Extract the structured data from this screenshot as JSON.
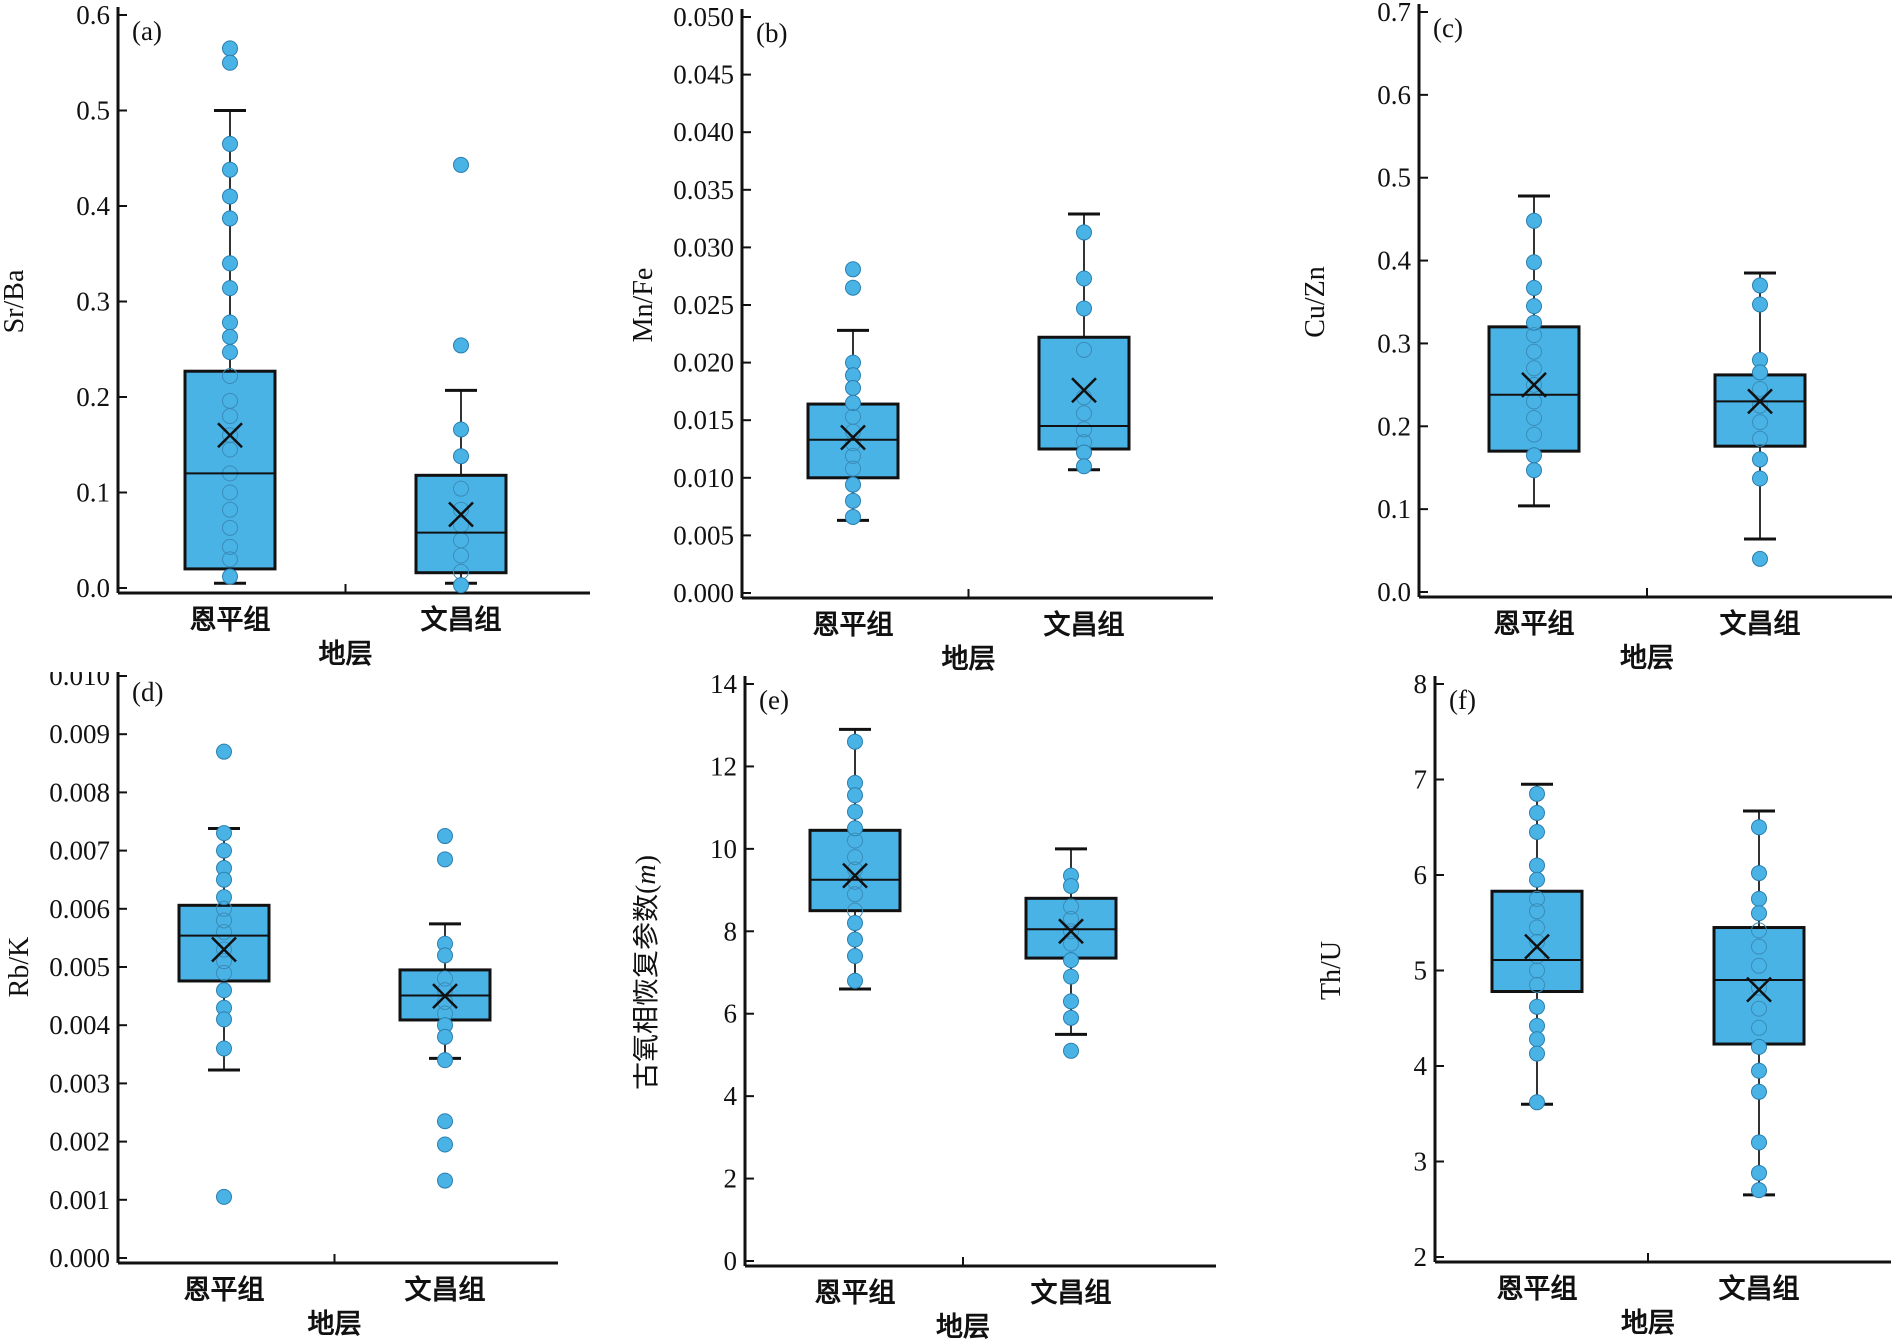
{
  "colors": {
    "box_fill": "#4ab3e6",
    "point_fill": "#4ab3e6",
    "stroke": "#1a1a1a"
  },
  "chart_data": [
    {
      "type": "box",
      "panel_label": "(a)",
      "ylabel": "Sr/Ba",
      "xlabel": "地层",
      "categories": [
        "恩平组",
        "文昌组"
      ],
      "ylim": [
        0,
        0.6
      ],
      "ticks": [
        0,
        0.1,
        0.2,
        0.3,
        0.4,
        0.5,
        0.6
      ],
      "tick_labels": [
        "0.0",
        "0.1",
        "0.2",
        "0.3",
        "0.4",
        "0.5",
        "0.6"
      ],
      "series": [
        {
          "name": "恩平组",
          "whisker_low": 0.005,
          "q1": 0.02,
          "median": 0.12,
          "q3": 0.227,
          "whisker_high": 0.5,
          "mean": 0.16,
          "points": [
            0.565,
            0.55,
            0.465,
            0.438,
            0.41,
            0.387,
            0.34,
            0.314,
            0.278,
            0.263,
            0.247,
            0.222,
            0.196,
            0.18,
            0.16,
            0.145,
            0.12,
            0.1,
            0.082,
            0.063,
            0.043,
            0.03,
            0.012
          ]
        },
        {
          "name": "文昌组",
          "whisker_low": 0.005,
          "q1": 0.016,
          "median": 0.058,
          "q3": 0.118,
          "whisker_high": 0.207,
          "mean": 0.077,
          "points": [
            0.443,
            0.254,
            0.166,
            0.138,
            0.104,
            0.082,
            0.066,
            0.05,
            0.034,
            0.017,
            0.003
          ]
        }
      ]
    },
    {
      "type": "box",
      "panel_label": "(b)",
      "ylabel": "Mn/Fe",
      "xlabel": "地层",
      "categories": [
        "恩平组",
        "文昌组"
      ],
      "ylim": [
        0,
        0.05
      ],
      "ticks": [
        0,
        0.005,
        0.01,
        0.015,
        0.02,
        0.025,
        0.03,
        0.035,
        0.04,
        0.045,
        0.05
      ],
      "tick_labels": [
        "0.000",
        "0.005",
        "0.010",
        "0.015",
        "0.020",
        "0.025",
        "0.030",
        "0.035",
        "0.040",
        "0.045",
        "0.050"
      ],
      "series": [
        {
          "name": "恩平组",
          "whisker_low": 0.0063,
          "q1": 0.01,
          "median": 0.0133,
          "q3": 0.0164,
          "whisker_high": 0.0228,
          "mean": 0.0135,
          "points": [
            0.0281,
            0.0265,
            0.02,
            0.0189,
            0.0178,
            0.0165,
            0.0153,
            0.014,
            0.013,
            0.0119,
            0.0108,
            0.0094,
            0.008,
            0.0066
          ]
        },
        {
          "name": "文昌组",
          "whisker_low": 0.0107,
          "q1": 0.0125,
          "median": 0.0145,
          "q3": 0.0222,
          "whisker_high": 0.0329,
          "mean": 0.0176,
          "points": [
            0.0313,
            0.0273,
            0.0247,
            0.0211,
            0.017,
            0.0156,
            0.0142,
            0.0131,
            0.0122,
            0.011
          ]
        }
      ]
    },
    {
      "type": "box",
      "panel_label": "(c)",
      "ylabel": "Cu/Zn",
      "xlabel": "地层",
      "categories": [
        "恩平组",
        "文昌组"
      ],
      "ylim": [
        0,
        0.7
      ],
      "ticks": [
        0,
        0.1,
        0.2,
        0.3,
        0.4,
        0.5,
        0.6,
        0.7
      ],
      "tick_labels": [
        "0.0",
        "0.1",
        "0.2",
        "0.3",
        "0.4",
        "0.5",
        "0.6",
        "0.7"
      ],
      "series": [
        {
          "name": "恩平组",
          "whisker_low": 0.104,
          "q1": 0.17,
          "median": 0.238,
          "q3": 0.32,
          "whisker_high": 0.478,
          "mean": 0.25,
          "points": [
            0.448,
            0.398,
            0.367,
            0.345,
            0.325,
            0.31,
            0.29,
            0.27,
            0.25,
            0.23,
            0.21,
            0.19,
            0.165,
            0.147
          ]
        },
        {
          "name": "文昌组",
          "whisker_low": 0.064,
          "q1": 0.176,
          "median": 0.23,
          "q3": 0.262,
          "whisker_high": 0.385,
          "mean": 0.23,
          "points": [
            0.37,
            0.347,
            0.28,
            0.265,
            0.245,
            0.225,
            0.205,
            0.185,
            0.16,
            0.137,
            0.04
          ]
        }
      ]
    },
    {
      "type": "box",
      "panel_label": "(d)",
      "ylabel": "Rb/K",
      "xlabel": "地层",
      "categories": [
        "恩平组",
        "文昌组"
      ],
      "ylim": [
        0,
        0.01
      ],
      "ticks": [
        0,
        0.001,
        0.002,
        0.003,
        0.004,
        0.005,
        0.006,
        0.007,
        0.008,
        0.009,
        0.01
      ],
      "tick_labels": [
        "0.000",
        "0.001",
        "0.002",
        "0.003",
        "0.004",
        "0.005",
        "0.006",
        "0.007",
        "0.008",
        "0.009",
        "0.010"
      ],
      "series": [
        {
          "name": "恩平组",
          "whisker_low": 0.00323,
          "q1": 0.00476,
          "median": 0.00554,
          "q3": 0.00606,
          "whisker_high": 0.00738,
          "mean": 0.0053,
          "points": [
            0.0087,
            0.0073,
            0.007,
            0.0067,
            0.0065,
            0.0062,
            0.006,
            0.0058,
            0.0056,
            0.0053,
            0.0051,
            0.0049,
            0.0046,
            0.0043,
            0.0041,
            0.0036,
            0.00105
          ]
        },
        {
          "name": "文昌组",
          "whisker_low": 0.00343,
          "q1": 0.00409,
          "median": 0.00451,
          "q3": 0.00495,
          "whisker_high": 0.00574,
          "mean": 0.0045,
          "points": [
            0.00725,
            0.00685,
            0.0054,
            0.0052,
            0.0048,
            0.0046,
            0.0044,
            0.0042,
            0.004,
            0.0038,
            0.0034,
            0.00235,
            0.00195,
            0.00133
          ]
        }
      ]
    },
    {
      "type": "box",
      "panel_label": "(e)",
      "ylabel": "古氧相恢复参数",
      "ylabel_var": "m",
      "xlabel": "地层",
      "categories": [
        "恩平组",
        "文昌组"
      ],
      "ylim": [
        0,
        14
      ],
      "ticks": [
        0,
        2,
        4,
        6,
        8,
        10,
        12,
        14
      ],
      "tick_labels": [
        "0",
        "2",
        "4",
        "6",
        "8",
        "10",
        "12",
        "14"
      ],
      "series": [
        {
          "name": "恩平组",
          "whisker_low": 6.6,
          "q1": 8.5,
          "median": 9.25,
          "q3": 10.45,
          "whisker_high": 12.9,
          "mean": 9.35,
          "points": [
            12.6,
            11.6,
            11.3,
            10.9,
            10.5,
            10.2,
            9.8,
            9.5,
            9.2,
            8.9,
            8.5,
            8.2,
            7.8,
            7.4,
            6.8
          ]
        },
        {
          "name": "文昌组",
          "whisker_low": 5.5,
          "q1": 7.35,
          "median": 8.05,
          "q3": 8.8,
          "whisker_high": 10.0,
          "mean": 8.0,
          "points": [
            9.35,
            9.1,
            8.6,
            8.3,
            8.0,
            7.7,
            7.3,
            6.9,
            6.3,
            5.9,
            5.1
          ]
        }
      ]
    },
    {
      "type": "box",
      "panel_label": "(f)",
      "ylabel": "Th/U",
      "xlabel": "地层",
      "categories": [
        "恩平组",
        "文昌组"
      ],
      "ylim": [
        2,
        8
      ],
      "ticks": [
        2,
        3,
        4,
        5,
        6,
        7,
        8
      ],
      "tick_labels": [
        "2",
        "3",
        "4",
        "5",
        "6",
        "7",
        "8"
      ],
      "series": [
        {
          "name": "恩平组",
          "whisker_low": 3.6,
          "q1": 4.78,
          "median": 5.11,
          "q3": 5.83,
          "whisker_high": 6.95,
          "mean": 5.25,
          "points": [
            6.85,
            6.65,
            6.45,
            6.1,
            5.95,
            5.75,
            5.62,
            5.45,
            5.3,
            5.15,
            5.0,
            4.85,
            4.62,
            4.42,
            4.28,
            4.13,
            3.62
          ]
        },
        {
          "name": "文昌组",
          "whisker_low": 2.65,
          "q1": 4.23,
          "median": 4.9,
          "q3": 5.45,
          "whisker_high": 6.67,
          "mean": 4.8,
          "points": [
            6.5,
            6.02,
            5.75,
            5.6,
            5.42,
            5.25,
            5.05,
            4.82,
            4.6,
            4.4,
            4.2,
            3.95,
            3.73,
            3.2,
            2.88,
            2.7
          ]
        }
      ]
    }
  ]
}
